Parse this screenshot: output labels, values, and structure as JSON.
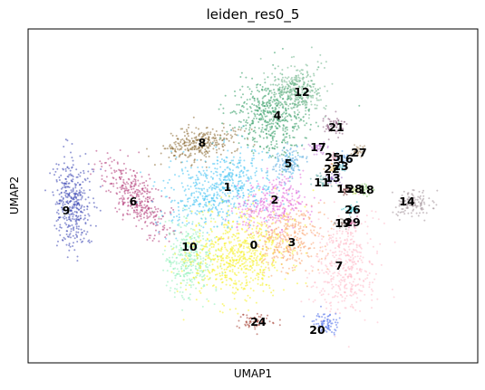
{
  "chart_data": {
    "type": "scatter",
    "title": "leiden_res0_5",
    "xlabel": "UMAP1",
    "ylabel": "UMAP2",
    "ticks": "none",
    "grid": false,
    "legend": "on data",
    "clusters": [
      {
        "label": "0",
        "color": "#f5f01f"
      },
      {
        "label": "1",
        "color": "#3ec1f2"
      },
      {
        "label": "2",
        "color": "#e46adb"
      },
      {
        "label": "3",
        "color": "#f9a36e"
      },
      {
        "label": "4",
        "color": "#2f9a62"
      },
      {
        "label": "5",
        "color": "#5aa9dc"
      },
      {
        "label": "6",
        "color": "#b23a78"
      },
      {
        "label": "7",
        "color": "#ffb9c8"
      },
      {
        "label": "8",
        "color": "#8b6a33"
      },
      {
        "label": "9",
        "color": "#3b46b2"
      },
      {
        "label": "10",
        "color": "#8ef0b8"
      },
      {
        "label": "11",
        "color": "#5ea8a2"
      },
      {
        "label": "12",
        "color": "#6fb58a"
      },
      {
        "label": "13",
        "color": "#9c6fd0"
      },
      {
        "label": "14",
        "color": "#a09098"
      },
      {
        "label": "15",
        "color": "#7a3636"
      },
      {
        "label": "16",
        "color": "#4a8fd8"
      },
      {
        "label": "17",
        "color": "#c27ad9"
      },
      {
        "label": "18",
        "color": "#86c26b"
      },
      {
        "label": "19",
        "color": "#8b7e74"
      },
      {
        "label": "20",
        "color": "#4b6bea"
      },
      {
        "label": "21",
        "color": "#8d5d80"
      },
      {
        "label": "22",
        "color": "#e8b24a"
      },
      {
        "label": "23",
        "color": "#56b8c8"
      },
      {
        "label": "24",
        "color": "#a23b2e"
      },
      {
        "label": "25",
        "color": "#d88aa8"
      },
      {
        "label": "26",
        "color": "#3fc7d0"
      },
      {
        "label": "27",
        "color": "#a88c6a"
      },
      {
        "label": "28",
        "color": "#b9d36a"
      },
      {
        "label": "29",
        "color": "#c45a8e"
      }
    ]
  }
}
